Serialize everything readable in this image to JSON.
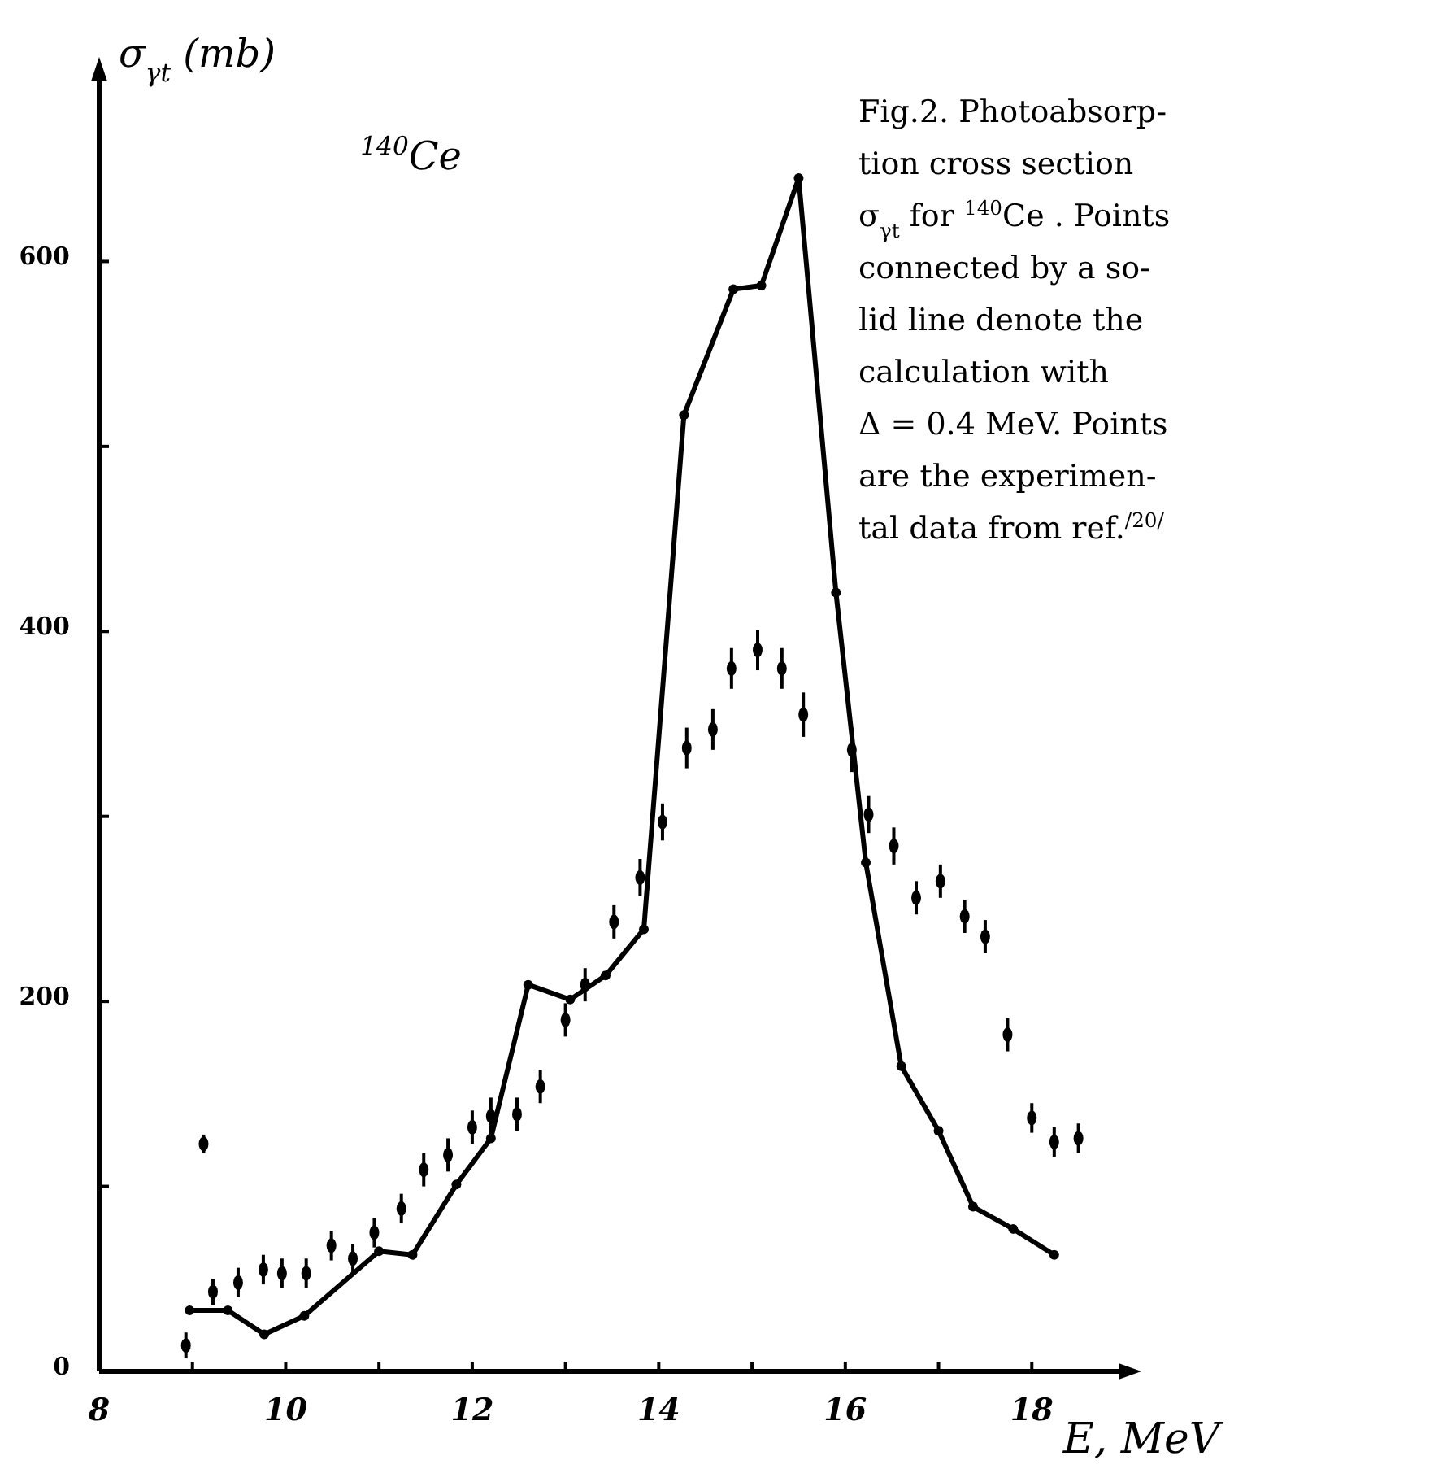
{
  "chart_data": {
    "type": "line",
    "xlabel": "E, MeV",
    "ylabel": "σ$_{γt}$ (mb)",
    "annotations": [
      "$^{140}$Ce",
      "Fig.2. Photoabsorp-",
      "tion cross section",
      "σ$_{γt}$ for $^{140}$Ce . Points",
      "connected by a so-",
      "lid line denote the",
      "calculation with",
      "Δ = 0.4 MeV. Points",
      "are the experimen-",
      "tal data from ref.$^{/20/}$"
    ],
    "xlim": [
      8,
      19
    ],
    "ylim": [
      0,
      700
    ],
    "xticks": [
      8,
      {
        "value": 9,
        "label": null
      },
      10,
      {
        "value": 11,
        "label": null
      },
      12,
      {
        "value": 13,
        "label": null
      },
      14,
      {
        "value": 15,
        "label": null
      },
      16,
      {
        "value": 17,
        "label": null
      },
      18
    ],
    "yticks": [
      0,
      {
        "value": 100,
        "label": null
      },
      200,
      {
        "value": 300,
        "label": null
      },
      400,
      {
        "value": 500,
        "label": null
      },
      600
    ],
    "grid": false,
    "marker": "circle",
    "line_style": "solid",
    "series": [
      {
        "color": "#000000",
        "x": [
          8.97,
          9.38,
          9.77,
          10.2,
          11.0,
          11.36,
          11.83,
          12.2,
          12.6,
          13.05,
          13.43,
          13.84,
          14.27,
          14.8,
          15.1,
          15.5,
          15.9,
          16.22,
          16.6,
          17.0,
          17.37,
          17.8,
          18.24
        ],
        "values": [
          33,
          33,
          20,
          30,
          65,
          63,
          101,
          126,
          209,
          201,
          214,
          239,
          517,
          585,
          587,
          645,
          421,
          275,
          165,
          130,
          89,
          77,
          63
        ]
      },
      {
        "type": "scatter",
        "color": "#000000",
        "x": [
          8.93,
          9.12,
          9.22,
          9.49,
          9.76,
          9.96,
          10.22,
          10.49,
          10.72,
          10.95,
          11.24,
          11.48,
          11.74,
          12.0,
          12.2,
          12.48,
          12.73,
          13.0,
          13.21,
          13.52,
          13.8,
          14.04,
          14.3,
          14.58,
          14.78,
          15.06,
          15.32,
          15.55,
          16.07,
          16.25,
          16.52,
          16.76,
          17.02,
          17.28,
          17.5,
          17.74,
          18.0,
          18.24,
          18.5
        ],
        "values": [
          14,
          123,
          43,
          48,
          55,
          53,
          53,
          68,
          61,
          75,
          88,
          109,
          117,
          132,
          138,
          139,
          154,
          190,
          209,
          243,
          267,
          297,
          337,
          347,
          380,
          390,
          380,
          355,
          336,
          301,
          284,
          256,
          265,
          246,
          235,
          182,
          137,
          124,
          126
        ],
        "errors": [
          7,
          5,
          7,
          8,
          8,
          8,
          8,
          8,
          8,
          8,
          8,
          9,
          9,
          9,
          10,
          9,
          9,
          9,
          9,
          9,
          10,
          10,
          11,
          11,
          11,
          11,
          11,
          12,
          12,
          10,
          10,
          9,
          9,
          9,
          9,
          9,
          8,
          8,
          8
        ]
      }
    ]
  }
}
